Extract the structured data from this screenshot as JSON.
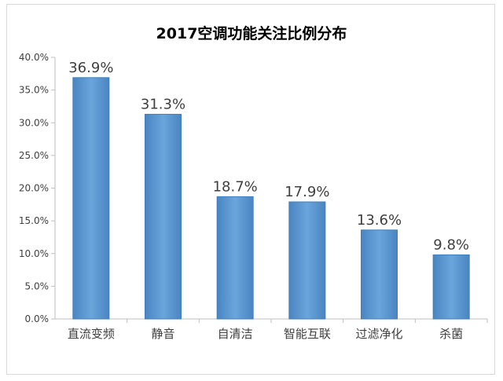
{
  "chart_data": {
    "type": "bar",
    "title": "2017空调功能关注比例分布",
    "categories": [
      "直流变频",
      "静音",
      "自清洁",
      "智能互联",
      "过滤净化",
      "杀菌"
    ],
    "values": [
      36.9,
      31.3,
      18.7,
      17.9,
      13.6,
      9.8
    ],
    "value_labels": [
      "36.9%",
      "31.3%",
      "18.7%",
      "17.9%",
      "13.6%",
      "9.8%"
    ],
    "y_ticks": [
      "0.0%",
      "5.0%",
      "10.0%",
      "15.0%",
      "20.0%",
      "25.0%",
      "30.0%",
      "35.0%",
      "40.0%"
    ],
    "ylim": [
      0,
      40
    ],
    "xlabel": "",
    "ylabel": "",
    "grid": false,
    "legend": "none",
    "bar_color": "#5b9bd5",
    "bar_color_dark": "#3f7fbd"
  }
}
